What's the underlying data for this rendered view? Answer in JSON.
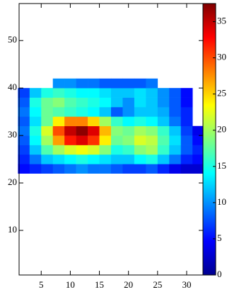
{
  "chart_data": {
    "type": "heatmap",
    "colormap": "jet",
    "x_edges": [
      1,
      3,
      5,
      7,
      9,
      11,
      13,
      15,
      17,
      19,
      21,
      23,
      25,
      27,
      29,
      31,
      33
    ],
    "y_edges": [
      22,
      24,
      26,
      28,
      30,
      32,
      34,
      36,
      38,
      40,
      42
    ],
    "z": [
      [
        5,
        6,
        7,
        8,
        9,
        10,
        9,
        9,
        8,
        7,
        7,
        8,
        6,
        4,
        3,
        3
      ],
      [
        6,
        9,
        12,
        13,
        14,
        15,
        14,
        13,
        12,
        12,
        14,
        15,
        12,
        9,
        6,
        5
      ],
      [
        7,
        12,
        17,
        20,
        22,
        23,
        22,
        19,
        15,
        16,
        19,
        20,
        16,
        12,
        8,
        6
      ],
      [
        8,
        14,
        20,
        27,
        32,
        34,
        31,
        24,
        18,
        19,
        22,
        21,
        17,
        13,
        8,
        5
      ],
      [
        9,
        15,
        22,
        30,
        35,
        37,
        34,
        26,
        19,
        18,
        20,
        19,
        16,
        12,
        7,
        4
      ],
      [
        8,
        13,
        18,
        24,
        28,
        28,
        25,
        20,
        16,
        14,
        15,
        14,
        12,
        9,
        6,
        null
      ],
      [
        9,
        14,
        18,
        17,
        16,
        15,
        14,
        12,
        8,
        10,
        12,
        12,
        11,
        8,
        6,
        null
      ],
      [
        8,
        15,
        18,
        19,
        17,
        16,
        15,
        14,
        12,
        10,
        13,
        12,
        10,
        8,
        5,
        null
      ],
      [
        7,
        12,
        15,
        16,
        15,
        14,
        14,
        13,
        12,
        12,
        13,
        12,
        10,
        8,
        5,
        null
      ],
      [
        null,
        null,
        null,
        10,
        10,
        9,
        9,
        8,
        8,
        8,
        8,
        9,
        null,
        null,
        null,
        null
      ]
    ],
    "xlim": [
      1.2,
      32.8
    ],
    "ylim": [
      0.6,
      57.8
    ],
    "xticks": [
      5,
      10,
      15,
      20,
      25,
      30
    ],
    "yticks": [
      10,
      20,
      30,
      40,
      50
    ],
    "zlim": [
      0,
      37.5
    ],
    "zticks": [
      0,
      5,
      10,
      15,
      20,
      25,
      30,
      35
    ]
  }
}
